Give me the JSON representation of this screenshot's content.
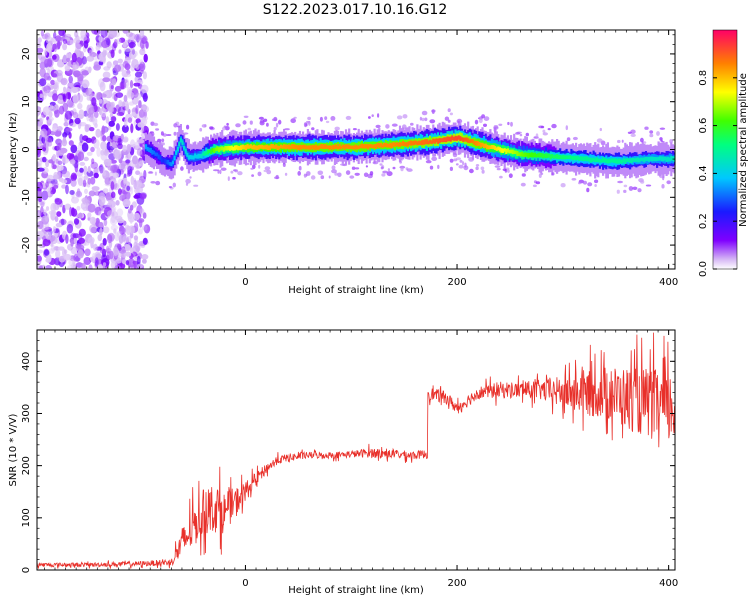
{
  "title": "S122.2023.017.10.16.G12",
  "chart_data": [
    {
      "type": "heatmap",
      "xlabel": "Height of straight line (km)",
      "ylabel": "Frequency (Hz)",
      "xlim": [
        -197,
        406
      ],
      "ylim": [
        -25,
        25
      ],
      "x_ticks": [
        0,
        200,
        400
      ],
      "y_ticks": [
        -20,
        -10,
        0,
        10,
        20
      ],
      "colorbar": {
        "label": "Normalized spectral amplitude",
        "range": [
          0,
          1
        ],
        "ticks": [
          0.0,
          0.2,
          0.4,
          0.6,
          0.8
        ],
        "tick_labels": [
          "0.0",
          "0.2",
          "0.4",
          "0.6",
          "0.8"
        ]
      },
      "noise_region_x": [
        -197,
        -93
      ],
      "ridge": {
        "x": [
          -95,
          -85,
          -78,
          -70,
          -62,
          -55,
          -45,
          -30,
          0,
          50,
          100,
          140,
          170,
          200,
          230,
          260,
          290,
          320,
          350,
          380,
          406
        ],
        "frequency": [
          0.5,
          -1,
          -2.5,
          -3,
          2,
          -1.5,
          -1.5,
          0,
          0.5,
          0.5,
          0.5,
          1,
          1.5,
          2.5,
          0.5,
          -1,
          -1.5,
          -2,
          -2.5,
          -2,
          -2
        ],
        "amplitude": [
          0.35,
          0.3,
          0.25,
          0.35,
          0.45,
          0.4,
          0.4,
          0.65,
          0.8,
          0.85,
          0.85,
          0.85,
          0.88,
          0.92,
          0.8,
          0.65,
          0.55,
          0.5,
          0.5,
          0.45,
          0.45
        ]
      }
    },
    {
      "type": "line",
      "xlabel": "Height of straight line (km)",
      "ylabel": "SNR (10 * V/V)",
      "xlim": [
        -197,
        406
      ],
      "ylim": [
        0,
        460
      ],
      "x_ticks": [
        0,
        200,
        400
      ],
      "y_ticks": [
        0,
        100,
        200,
        300,
        400
      ],
      "series": [
        {
          "color": "#e8302a",
          "x": [
            -197,
            -150,
            -100,
            -70,
            -60,
            -50,
            -40,
            -30,
            -20,
            -10,
            0,
            10,
            20,
            30,
            40,
            60,
            80,
            100,
            120,
            140,
            160,
            170,
            172,
            180,
            190,
            200,
            210,
            220,
            240,
            260,
            280,
            300,
            320,
            340,
            360,
            380,
            400,
            406
          ],
          "y": [
            10,
            10,
            12,
            15,
            50,
            80,
            110,
            120,
            110,
            130,
            150,
            175,
            195,
            210,
            215,
            220,
            220,
            222,
            225,
            222,
            220,
            222,
            340,
            335,
            330,
            310,
            325,
            340,
            345,
            345,
            345,
            340,
            340,
            340,
            330,
            320,
            310,
            310
          ],
          "noise_amplitude": [
            5,
            5,
            6,
            8,
            40,
            50,
            55,
            60,
            50,
            35,
            25,
            15,
            12,
            10,
            10,
            8,
            8,
            8,
            12,
            10,
            10,
            10,
            15,
            15,
            15,
            15,
            15,
            15,
            20,
            20,
            25,
            40,
            55,
            65,
            75,
            85,
            90,
            90
          ]
        }
      ]
    }
  ]
}
